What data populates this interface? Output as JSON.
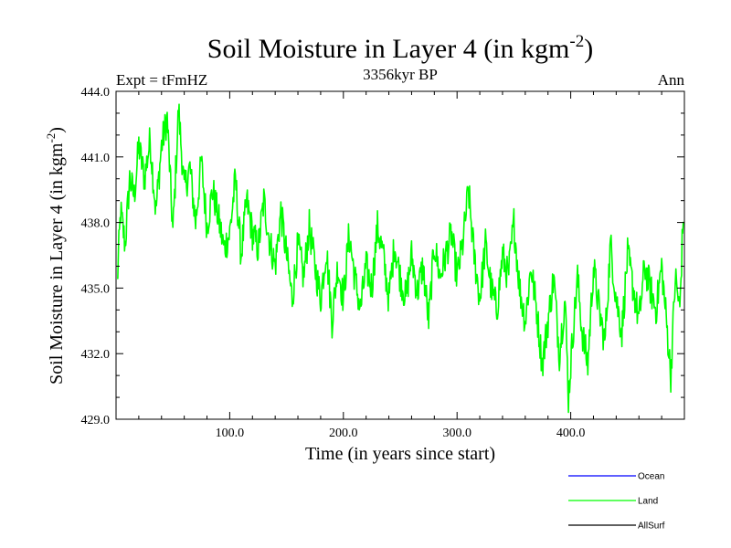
{
  "chart_data": {
    "type": "line",
    "title_main": "Soil Moisture in Layer 4 (in kgm",
    "title_sup": "-2",
    "title_close": ")",
    "subtitle_left": "Expt = tFmHZ",
    "subtitle_center": "3356kyr BP",
    "subtitle_right": "Ann",
    "xlabel": "Time (in years since start)",
    "ylabel_main": "Soil Moisture in Layer 4 (in kgm",
    "ylabel_sup": "-2",
    "ylabel_close": ")",
    "xlim": [
      0,
      500
    ],
    "ylim": [
      429,
      444
    ],
    "x_ticks": [
      {
        "value": 100,
        "label": "100.0"
      },
      {
        "value": 200,
        "label": "200.0"
      },
      {
        "value": 300,
        "label": "300.0"
      },
      {
        "value": 400,
        "label": "400.0"
      }
    ],
    "y_ticks": [
      {
        "value": 429,
        "label": "429.0"
      },
      {
        "value": 432,
        "label": "432.0"
      },
      {
        "value": 435,
        "label": "435.0"
      },
      {
        "value": 438,
        "label": "438.0"
      },
      {
        "value": 441,
        "label": "441.0"
      },
      {
        "value": 444,
        "label": "444.0"
      }
    ],
    "series": [
      {
        "name": "Land",
        "color": "#00ff00",
        "keypoints": [
          [
            1,
            435.2
          ],
          [
            4,
            438.5
          ],
          [
            8,
            437.0
          ],
          [
            12,
            440.0
          ],
          [
            16,
            439.2
          ],
          [
            20,
            441.5
          ],
          [
            25,
            440.0
          ],
          [
            30,
            441.8
          ],
          [
            35,
            438.5
          ],
          [
            40,
            441.5
          ],
          [
            45,
            442.8
          ],
          [
            50,
            437.5
          ],
          [
            55,
            443.2
          ],
          [
            60,
            439.5
          ],
          [
            65,
            440.5
          ],
          [
            70,
            438.0
          ],
          [
            75,
            440.8
          ],
          [
            80,
            437.8
          ],
          [
            85,
            439.5
          ],
          [
            90,
            438.2
          ],
          [
            95,
            436.8
          ],
          [
            100,
            437.5
          ],
          [
            105,
            440.0
          ],
          [
            110,
            436.5
          ],
          [
            115,
            439.0
          ],
          [
            120,
            437.5
          ],
          [
            125,
            436.8
          ],
          [
            130,
            439.0
          ],
          [
            135,
            437.2
          ],
          [
            140,
            436.0
          ],
          [
            145,
            438.5
          ],
          [
            150,
            436.5
          ],
          [
            155,
            434.5
          ],
          [
            160,
            437.0
          ],
          [
            165,
            435.5
          ],
          [
            170,
            437.8
          ],
          [
            175,
            436.0
          ],
          [
            180,
            434.5
          ],
          [
            185,
            436.8
          ],
          [
            190,
            433.5
          ],
          [
            195,
            436.0
          ],
          [
            200,
            434.5
          ],
          [
            205,
            437.5
          ],
          [
            210,
            435.5
          ],
          [
            215,
            434.0
          ],
          [
            220,
            436.0
          ],
          [
            225,
            435.0
          ],
          [
            230,
            437.8
          ],
          [
            235,
            436.5
          ],
          [
            240,
            434.5
          ],
          [
            245,
            437.0
          ],
          [
            250,
            435.5
          ],
          [
            255,
            434.5
          ],
          [
            260,
            436.5
          ],
          [
            265,
            434.8
          ],
          [
            270,
            436.0
          ],
          [
            275,
            433.5
          ],
          [
            280,
            437.0
          ],
          [
            285,
            435.5
          ],
          [
            290,
            436.5
          ],
          [
            295,
            437.5
          ],
          [
            300,
            435.5
          ],
          [
            305,
            437.0
          ],
          [
            310,
            439.5
          ],
          [
            315,
            436.5
          ],
          [
            320,
            434.5
          ],
          [
            325,
            437.0
          ],
          [
            330,
            435.0
          ],
          [
            335,
            434.0
          ],
          [
            340,
            436.5
          ],
          [
            345,
            435.5
          ],
          [
            350,
            438.0
          ],
          [
            355,
            435.0
          ],
          [
            360,
            433.5
          ],
          [
            365,
            436.0
          ],
          [
            370,
            434.0
          ],
          [
            375,
            431.5
          ],
          [
            380,
            433.5
          ],
          [
            385,
            435.5
          ],
          [
            390,
            432.0
          ],
          [
            395,
            434.5
          ],
          [
            398,
            430.0
          ],
          [
            402,
            433.0
          ],
          [
            406,
            435.5
          ],
          [
            410,
            433.0
          ],
          [
            415,
            431.5
          ],
          [
            420,
            436.0
          ],
          [
            425,
            434.0
          ],
          [
            430,
            432.5
          ],
          [
            435,
            437.0
          ],
          [
            440,
            434.5
          ],
          [
            445,
            433.0
          ],
          [
            450,
            436.5
          ],
          [
            455,
            435.0
          ],
          [
            460,
            433.5
          ],
          [
            465,
            436.0
          ],
          [
            470,
            435.0
          ],
          [
            475,
            434.0
          ],
          [
            480,
            436.0
          ],
          [
            485,
            433.0
          ],
          [
            488,
            431.0
          ],
          [
            492,
            435.5
          ],
          [
            496,
            434.0
          ],
          [
            499,
            438.5
          ]
        ]
      }
    ],
    "legend": [
      {
        "name": "Ocean",
        "color": "#0000ff"
      },
      {
        "name": "Land",
        "color": "#00ff00"
      },
      {
        "name": "AllSurf",
        "color": "#000000"
      }
    ]
  }
}
